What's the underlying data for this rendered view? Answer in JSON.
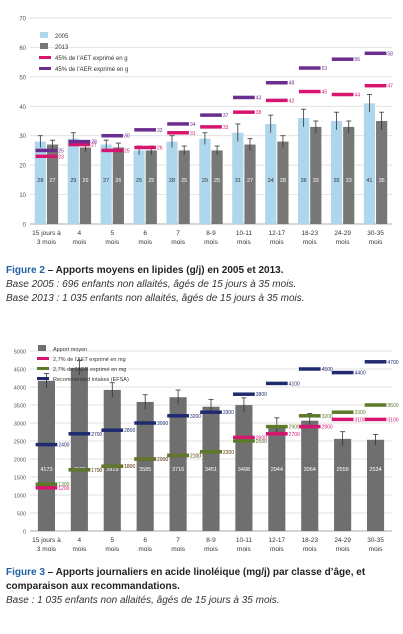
{
  "figures": [
    {
      "caption_label": "Figure 2",
      "caption_title": " – Apports moyens en lipides (g/j) en 2005 et 2013.",
      "notes": [
        "Base 2005 : 696 enfants non allaités, âgés de 15 jours à 35 mois.",
        "Base 2013 : 1 035 enfants non allaités, âgés de 15 jours à 35 mois."
      ]
    },
    {
      "caption_label": "Figure 3",
      "caption_title": " – Apports journaliers en acide linoléique (mg/j) par classe d’âge, et comparaison aux recommandations.",
      "notes": [
        "Base : 1 035 enfants non allaités, âgés de 15 jours à 35 mois."
      ]
    }
  ],
  "chart_data": [
    {
      "type": "bar",
      "categories": [
        "15 jours à 3 mois",
        "4 mois",
        "5 mois",
        "6 mois",
        "7 mois",
        "8-9 mois",
        "10-11 mois",
        "12-17 mois",
        "18-23 mois",
        "24-29 mois",
        "30-35 mois"
      ],
      "ylim": [
        0,
        70
      ],
      "yticks": [
        0,
        10,
        20,
        30,
        40,
        50,
        60,
        70
      ],
      "grid": true,
      "legend_position": "top-left",
      "series": [
        {
          "name": "2005",
          "kind": "bar",
          "color": "#aed6ec",
          "values": [
            28,
            29,
            27,
            25,
            28,
            29,
            31,
            34,
            36,
            35,
            41
          ],
          "errors": [
            2,
            2,
            1.5,
            1.5,
            2,
            2,
            3,
            3,
            3,
            3,
            3
          ]
        },
        {
          "name": "2013",
          "kind": "bar",
          "color": "#777777",
          "values": [
            27,
            26,
            26,
            25,
            25,
            25,
            27,
            28,
            33,
            33,
            35
          ],
          "errors": [
            1.5,
            1.5,
            1.5,
            1.5,
            1.5,
            1.5,
            2,
            2,
            2,
            2,
            3
          ]
        },
        {
          "name": "45% de l’AET exprimé en g",
          "kind": "marker",
          "color": "#d6156f",
          "values": [
            23,
            27,
            25,
            26,
            31,
            33,
            38,
            42,
            45,
            44,
            47
          ]
        },
        {
          "name": "45% de l’AER exprimé en g",
          "kind": "marker",
          "color": "#6a2e8f",
          "values": [
            25,
            28,
            30,
            32,
            34,
            37,
            43,
            48,
            53,
            56,
            58
          ]
        }
      ]
    },
    {
      "type": "bar",
      "categories": [
        "15 jours à 3 mois",
        "4 mois",
        "5 mois",
        "6 mois",
        "7 mois",
        "8-9 mois",
        "10-11 mois",
        "12-17 mois",
        "18-23 mois",
        "24-29 mois",
        "30-35 mois"
      ],
      "ylim": [
        0,
        5000
      ],
      "yticks": [
        0,
        500,
        1000,
        1500,
        2000,
        2500,
        3000,
        3500,
        4000,
        4500,
        5000
      ],
      "grid": true,
      "legend_position": "top-left",
      "series": [
        {
          "name": "Apport moyen",
          "kind": "bar",
          "color": "#6f6f6f",
          "values": [
            4173,
            4532,
            3919,
            3585,
            3716,
            3451,
            3498,
            2944,
            3064,
            2559,
            2534
          ],
          "errors": [
            200,
            200,
            200,
            200,
            200,
            200,
            200,
            200,
            200,
            200,
            150
          ]
        },
        {
          "name": "2,7% de l’AET exprimé en mg",
          "kind": "marker",
          "color": "#d6156f",
          "values": [
            1200,
            1700,
            1800,
            2000,
            2100,
            2200,
            2600,
            2700,
            2900,
            3100,
            3100
          ]
        },
        {
          "name": "2,7% de l’AER exprimé en mg",
          "kind": "marker",
          "color": "#5b7a2a",
          "values": [
            1300,
            1700,
            1800,
            2000,
            2100,
            2200,
            2500,
            2900,
            3200,
            3300,
            3500
          ]
        },
        {
          "name": "Recommended intakes (EFSA)",
          "kind": "marker",
          "color": "#202a6e",
          "values": [
            2400,
            2700,
            2800,
            3000,
            3200,
            3300,
            3800,
            4100,
            4500,
            4400,
            4700
          ]
        }
      ]
    }
  ]
}
